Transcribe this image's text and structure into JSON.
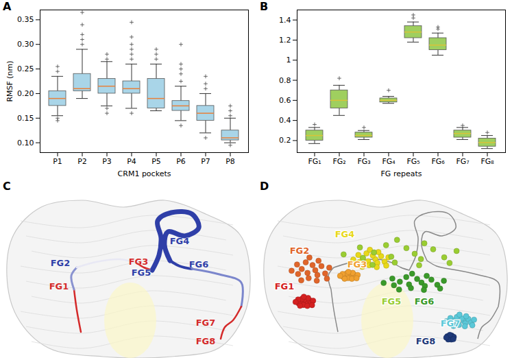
{
  "chart_data": [
    {
      "type": "box",
      "title": "A",
      "x_label": "CRM1 pockets",
      "y_label": "RMSF (nm)",
      "categories": [
        "P1",
        "P2",
        "P3",
        "P4",
        "P5",
        "P6",
        "P7",
        "P8"
      ],
      "color": "#a9d5e8",
      "grid": false,
      "ylim": [
        0.08,
        0.37
      ],
      "yticks": [
        {
          "value": 0.1,
          "label": "0.10"
        },
        {
          "value": 0.15,
          "label": "0.15"
        },
        {
          "value": 0.2,
          "label": "0.20"
        },
        {
          "value": 0.25,
          "label": "0.25"
        },
        {
          "value": 0.3,
          "label": "0.30"
        },
        {
          "value": 0.35,
          "label": "0.35"
        }
      ],
      "boxes": [
        {
          "whisker_low": 0.155,
          "q1": 0.175,
          "median": 0.19,
          "q3": 0.205,
          "whisker_high": 0.235,
          "outliers": [
            0.145,
            0.15,
            0.245,
            0.255
          ]
        },
        {
          "whisker_low": 0.19,
          "q1": 0.205,
          "median": 0.21,
          "q3": 0.24,
          "whisker_high": 0.29,
          "outliers": [
            0.3,
            0.31,
            0.32,
            0.34,
            0.365
          ]
        },
        {
          "whisker_low": 0.175,
          "q1": 0.2,
          "median": 0.215,
          "q3": 0.23,
          "whisker_high": 0.265,
          "outliers": [
            0.16,
            0.17,
            0.27,
            0.28
          ]
        },
        {
          "whisker_low": 0.17,
          "q1": 0.2,
          "median": 0.21,
          "q3": 0.225,
          "whisker_high": 0.26,
          "outliers": [
            0.16,
            0.27,
            0.28,
            0.29,
            0.3,
            0.315,
            0.345
          ]
        },
        {
          "whisker_low": 0.165,
          "q1": 0.17,
          "median": 0.19,
          "q3": 0.23,
          "whisker_high": 0.26,
          "outliers": [
            0.27,
            0.28,
            0.29
          ]
        },
        {
          "whisker_low": 0.145,
          "q1": 0.165,
          "median": 0.175,
          "q3": 0.185,
          "whisker_high": 0.215,
          "outliers": [
            0.135,
            0.225,
            0.24,
            0.25,
            0.26,
            0.3
          ]
        },
        {
          "whisker_low": 0.12,
          "q1": 0.145,
          "median": 0.16,
          "q3": 0.175,
          "whisker_high": 0.2,
          "outliers": [
            0.11,
            0.21,
            0.22,
            0.235
          ]
        },
        {
          "whisker_low": 0.1,
          "q1": 0.105,
          "median": 0.11,
          "q3": 0.125,
          "whisker_high": 0.15,
          "outliers": [
            0.095,
            0.155,
            0.165,
            0.175
          ]
        }
      ]
    },
    {
      "type": "box",
      "title": "B",
      "x_label": "FG repeats",
      "categories": [
        "FG₁",
        "FG₂",
        "FG₃",
        "FG₄",
        "FG₅",
        "FG₆",
        "FG₇",
        "FG₈"
      ],
      "color": "#9fcf5f",
      "grid": false,
      "ylim": [
        0.08,
        1.5
      ],
      "yticks": [
        0.2,
        0.4,
        0.6,
        0.8,
        1.0,
        1.2,
        1.4
      ],
      "boxes": [
        {
          "whisker_low": 0.17,
          "q1": 0.2,
          "median": 0.25,
          "q3": 0.3,
          "whisker_high": 0.33,
          "outliers": [
            0.36
          ]
        },
        {
          "whisker_low": 0.45,
          "q1": 0.52,
          "median": 0.6,
          "q3": 0.7,
          "whisker_high": 0.75,
          "outliers": [
            0.82
          ]
        },
        {
          "whisker_low": 0.21,
          "q1": 0.23,
          "median": 0.25,
          "q3": 0.28,
          "whisker_high": 0.3,
          "outliers": [
            0.33
          ]
        },
        {
          "whisker_low": 0.57,
          "q1": 0.58,
          "median": 0.6,
          "q3": 0.62,
          "whisker_high": 0.64,
          "outliers": [
            0.7
          ]
        },
        {
          "whisker_low": 1.18,
          "q1": 1.22,
          "median": 1.28,
          "q3": 1.34,
          "whisker_high": 1.38,
          "outliers": [
            1.42,
            1.45
          ]
        },
        {
          "whisker_low": 1.05,
          "q1": 1.1,
          "median": 1.15,
          "q3": 1.22,
          "whisker_high": 1.27,
          "outliers": [
            1.31,
            1.33
          ]
        },
        {
          "whisker_low": 0.21,
          "q1": 0.23,
          "median": 0.27,
          "q3": 0.3,
          "whisker_high": 0.33,
          "outliers": [
            0.35
          ]
        },
        {
          "whisker_low": 0.12,
          "q1": 0.14,
          "median": 0.18,
          "q3": 0.22,
          "whisker_high": 0.25,
          "outliers": [
            0.28
          ]
        }
      ]
    },
    {
      "type": "diagram",
      "title": "C",
      "labels": [
        {
          "text": "FG1",
          "color": "#d42a2a"
        },
        {
          "text": "FG2",
          "color": "#2f3fa8"
        },
        {
          "text": "FG3",
          "color": "#d42a2a"
        },
        {
          "text": "FG4",
          "color": "#2f3fa8"
        },
        {
          "text": "FG5",
          "color": "#2f3fa8"
        },
        {
          "text": "FG6",
          "color": "#2f3fa8"
        },
        {
          "text": "FG7",
          "color": "#d42a2a"
        },
        {
          "text": "FG8",
          "color": "#d42a2a"
        }
      ]
    },
    {
      "type": "diagram",
      "title": "D",
      "labels": [
        {
          "text": "FG1",
          "color": "#d42020"
        },
        {
          "text": "FG2",
          "color": "#e0652a"
        },
        {
          "text": "FG3",
          "color": "#f0a030"
        },
        {
          "text": "FG4",
          "color": "#e8d81a"
        },
        {
          "text": "FG5",
          "color": "#9acd32"
        },
        {
          "text": "FG6",
          "color": "#3a9a2a"
        },
        {
          "text": "FG7",
          "color": "#5bc8d8"
        },
        {
          "text": "FG8",
          "color": "#1f3a7a"
        }
      ]
    }
  ]
}
